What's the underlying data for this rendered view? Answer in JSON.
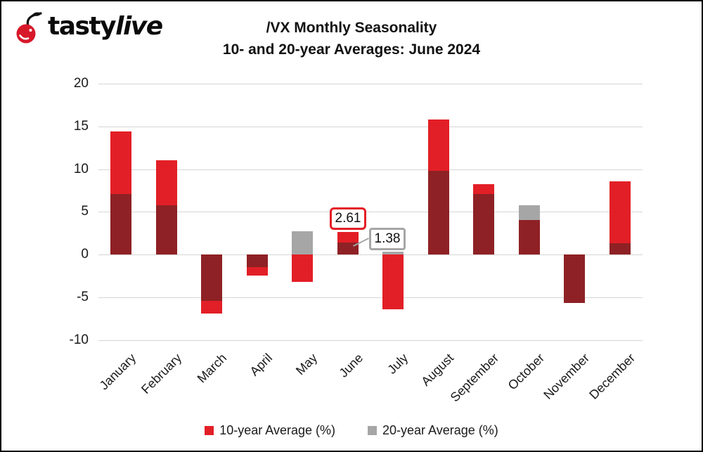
{
  "brand": {
    "name_plain": "tasty",
    "name_italic": "live",
    "icon": "cherry-icon",
    "cherry_color": "#D7182A"
  },
  "title": {
    "line1": "/VX Monthly Seasonality",
    "line2": "10- and 20-year Averages: June 2024"
  },
  "chart_data": {
    "type": "bar",
    "title": "/VX Monthly Seasonality — 10- and 20-year Averages: June 2024",
    "categories": [
      "January",
      "February",
      "March",
      "April",
      "May",
      "June",
      "July",
      "August",
      "September",
      "October",
      "November",
      "December"
    ],
    "series": [
      {
        "name": "10-year Average (%)",
        "color": "#E21F26",
        "values": [
          14.4,
          11.0,
          -6.9,
          -2.5,
          -3.2,
          2.61,
          -6.4,
          15.8,
          8.2,
          4.0,
          -5.7,
          8.6
        ]
      },
      {
        "name": "20-year Average (%)",
        "color": "#A6A6A6",
        "values": [
          7.1,
          5.8,
          -5.4,
          -1.5,
          2.7,
          1.38,
          0.3,
          9.8,
          7.1,
          5.8,
          -5.7,
          1.3
        ]
      }
    ],
    "bar_mode": "overlaid",
    "overlap_color": "#8E2125",
    "ylim": [
      -10,
      20
    ],
    "yticks": [
      20,
      15,
      10,
      5,
      0,
      -5,
      -10
    ],
    "grid": true,
    "gridline_color": "#D6D6D6",
    "legend_position": "bottom",
    "xlabel": "",
    "ylabel": "",
    "annotations": [
      {
        "text": "2.61",
        "category": "June",
        "series": "10-year Average (%)",
        "border_color": "#E21F26"
      },
      {
        "text": "1.38",
        "category": "June",
        "series": "20-year Average (%)",
        "border_color": "#A6A6A6"
      }
    ]
  },
  "legend": {
    "items": [
      {
        "label": "10-year Average (%)",
        "color": "#E21F26"
      },
      {
        "label": "20-year Average (%)",
        "color": "#A6A6A6"
      }
    ]
  }
}
